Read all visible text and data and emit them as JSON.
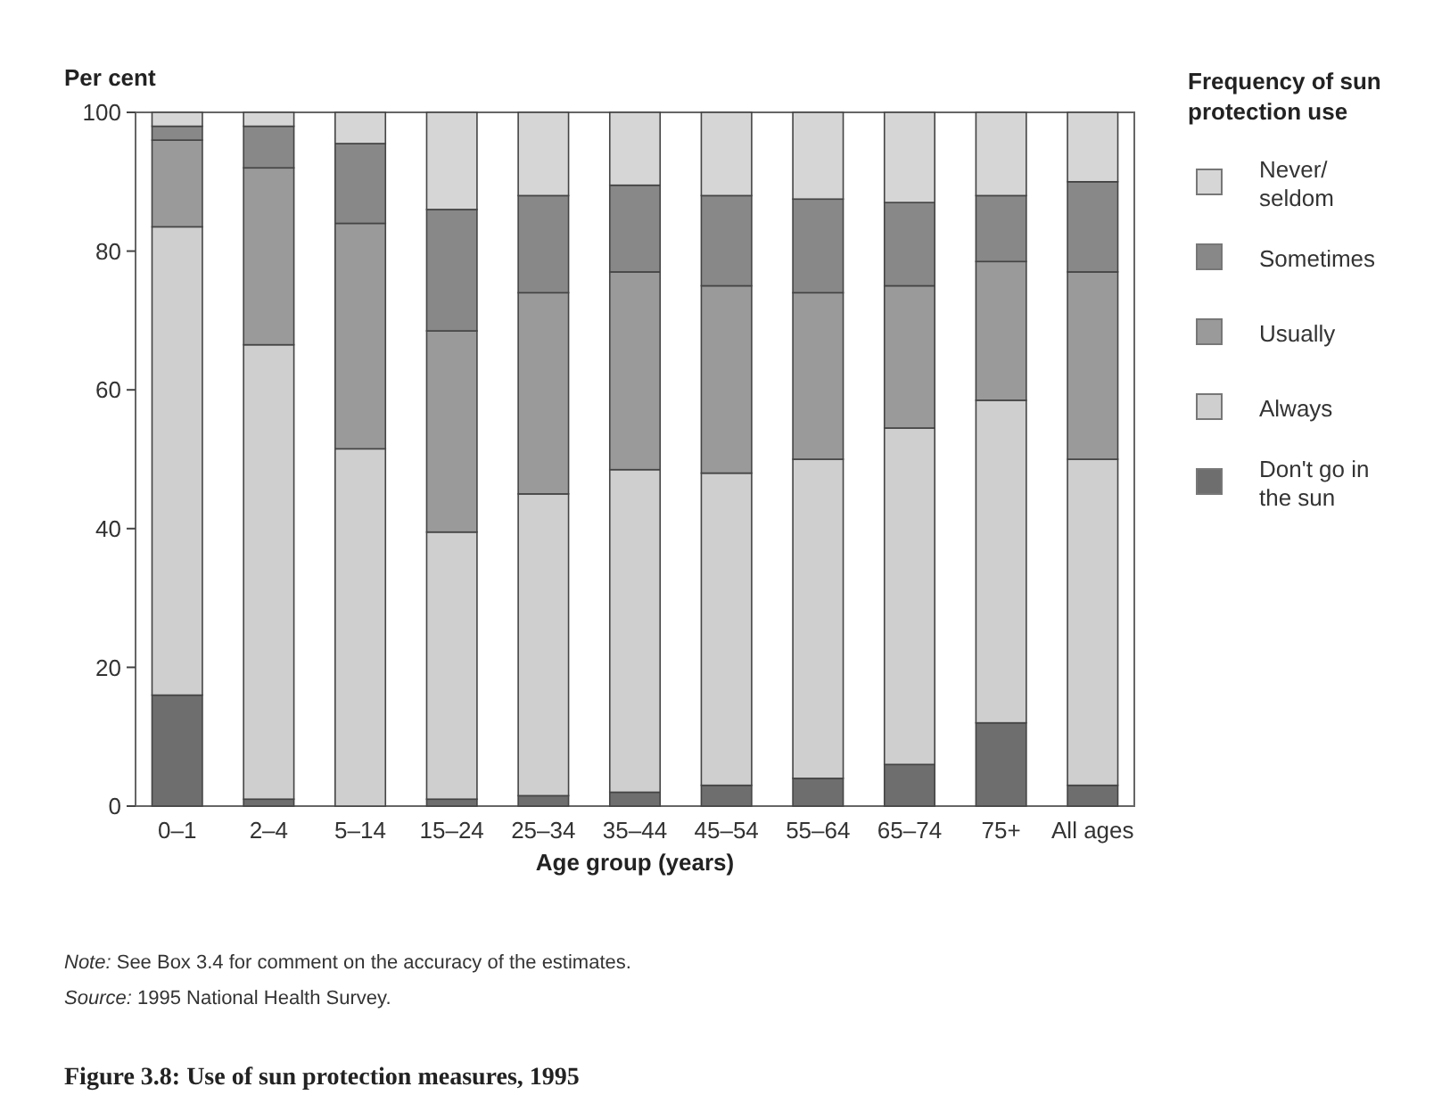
{
  "chart_data": {
    "type": "bar",
    "stacked": true,
    "title": "Figure 3.8: Use of sun protection measures, 1995",
    "ylabel": "Per cent",
    "xlabel": "Age group (years)",
    "legend_title": "Frequency of sun protection use",
    "legend": "right",
    "categories": [
      "0–1",
      "2–4",
      "5–14",
      "15–24",
      "25–34",
      "35–44",
      "45–54",
      "55–64",
      "65–74",
      "75+",
      "All ages"
    ],
    "ylim": [
      0,
      100
    ],
    "yticks": [
      0,
      20,
      40,
      60,
      80,
      100
    ],
    "series": [
      {
        "name": "Don't go in the sun",
        "color": "#6e6e6e",
        "values": [
          16,
          1,
          0,
          1,
          1.5,
          2,
          3,
          4,
          6,
          12,
          3
        ]
      },
      {
        "name": "Always",
        "color": "#cfcfcf",
        "values": [
          67.5,
          65.5,
          51.5,
          38.5,
          43.5,
          46.5,
          45,
          46,
          48.5,
          46.5,
          47
        ]
      },
      {
        "name": "Usually",
        "color": "#9a9a9a",
        "values": [
          12.5,
          25.5,
          32.5,
          29,
          29,
          28.5,
          27,
          24,
          20.5,
          20,
          27
        ]
      },
      {
        "name": "Sometimes",
        "color": "#888888",
        "values": [
          2,
          6,
          11.5,
          17.5,
          14,
          12.5,
          13,
          13.5,
          12,
          9.5,
          13
        ]
      },
      {
        "name": "Never/ seldom",
        "color": "#d6d6d6",
        "values": [
          2,
          2,
          4.5,
          14,
          12,
          10.5,
          12,
          12.5,
          13,
          12,
          10
        ]
      }
    ],
    "annotations": [
      "Note: See Box 3.4 for comment on the accuracy of the estimates.",
      "Source: 1995 National Health Survey."
    ]
  }
}
